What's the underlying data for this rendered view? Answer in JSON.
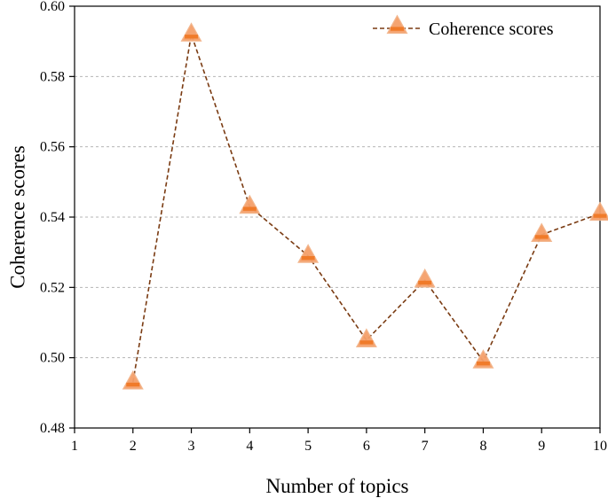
{
  "chart_data": {
    "type": "line",
    "xlabel": "Number of topics",
    "ylabel": "Coherence scores",
    "xlim": [
      1,
      10
    ],
    "ylim": [
      0.48,
      0.6
    ],
    "x_ticks": [
      "1",
      "2",
      "3",
      "4",
      "5",
      "6",
      "7",
      "8",
      "9",
      "10"
    ],
    "y_ticks": [
      "0.48",
      "0.50",
      "0.52",
      "0.54",
      "0.56",
      "0.58",
      "0.60"
    ],
    "grid": "horizontal dashed",
    "legend_position": "top-right",
    "series": [
      {
        "name": "Coherence scores",
        "x": [
          2,
          3,
          4,
          5,
          6,
          7,
          8,
          9,
          10
        ],
        "y": [
          0.493,
          0.592,
          0.543,
          0.529,
          0.505,
          0.522,
          0.499,
          0.535,
          0.541
        ],
        "line_color": "#7a3b12",
        "marker_color": "#f5a06a",
        "marker_edge": "#f07b2a",
        "marker": "triangle",
        "line_style": "dashed"
      }
    ]
  }
}
